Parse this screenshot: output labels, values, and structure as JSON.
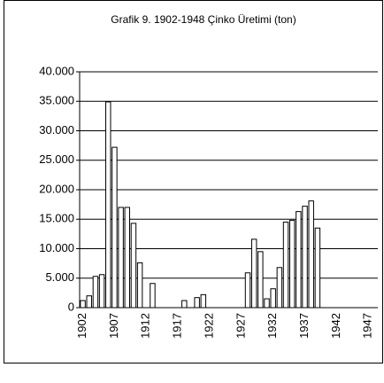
{
  "chart_data": {
    "type": "bar",
    "title": "Grafik 9. 1902-1948 Çinko Üretimi (ton)",
    "categories": [
      "1902",
      null,
      null,
      null,
      null,
      "1907",
      null,
      null,
      null,
      null,
      "1912",
      null,
      null,
      null,
      null,
      "1917",
      null,
      null,
      null,
      null,
      "1922",
      null,
      null,
      null,
      null,
      "1927",
      null,
      null,
      null,
      null,
      "1932",
      null,
      null,
      null,
      null,
      "1937",
      null,
      null,
      null,
      null,
      "1942",
      null,
      null,
      null,
      null,
      "1947",
      null
    ],
    "values": [
      1200,
      2000,
      5300,
      5600,
      34900,
      27200,
      17000,
      17000,
      14300,
      7600,
      0,
      4100,
      0,
      0,
      0,
      0,
      1200,
      0,
      1700,
      2200,
      0,
      0,
      0,
      0,
      0,
      0,
      5900,
      11600,
      9500,
      1500,
      3200,
      6800,
      14500,
      14800,
      16300,
      17200,
      18100,
      13500,
      0,
      0,
      0,
      0,
      0,
      0,
      0,
      0,
      0
    ],
    "color": "#ffffff",
    "ylim": [
      0,
      40000
    ],
    "yticks": [
      0,
      {
        "value": 5000,
        "label": "5.000"
      },
      {
        "value": 10000,
        "label": "10.000"
      },
      {
        "value": 15000,
        "label": "15.000"
      },
      {
        "value": 20000,
        "label": "20.000"
      },
      {
        "value": 25000,
        "label": "25.000"
      },
      {
        "value": 30000,
        "label": "30.000"
      },
      {
        "value": 35000,
        "label": "35.000"
      },
      {
        "value": 40000,
        "label": "40.000"
      }
    ],
    "grid": true
  }
}
